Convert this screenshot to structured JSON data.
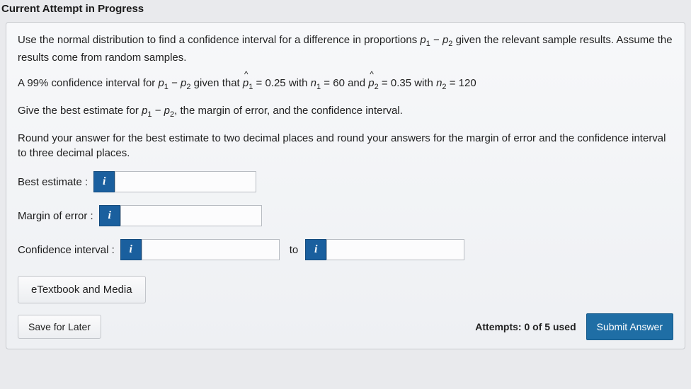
{
  "header": {
    "title": "Current Attempt in Progress"
  },
  "problem": {
    "intro_a": "Use the normal distribution to find a confidence interval for a difference in proportions ",
    "intro_b": " given the relevant sample results. Assume the results come from random samples.",
    "line2_a": "A 99% confidence interval for ",
    "line2_b": " given that ",
    "line2_c": " = 0.25 with ",
    "line2_d": " = 60 and ",
    "line2_e": " = 0.35 with ",
    "line2_f": " = 120",
    "line3_a": "Give the best estimate for ",
    "line3_b": ", the margin of error, and the confidence interval.",
    "line4": "Round your answer for the best estimate to two decimal places and round your answers for the margin of error and the confidence interval to three decimal places."
  },
  "inputs": {
    "best_label": "Best estimate :",
    "margin_label": "Margin of error :",
    "ci_label": "Confidence interval :",
    "to_label": "to",
    "info_glyph": "i"
  },
  "buttons": {
    "etext": "eTextbook and Media",
    "save": "Save for Later",
    "submit": "Submit Answer"
  },
  "status": {
    "attempts": "Attempts: 0 of 5 used"
  }
}
